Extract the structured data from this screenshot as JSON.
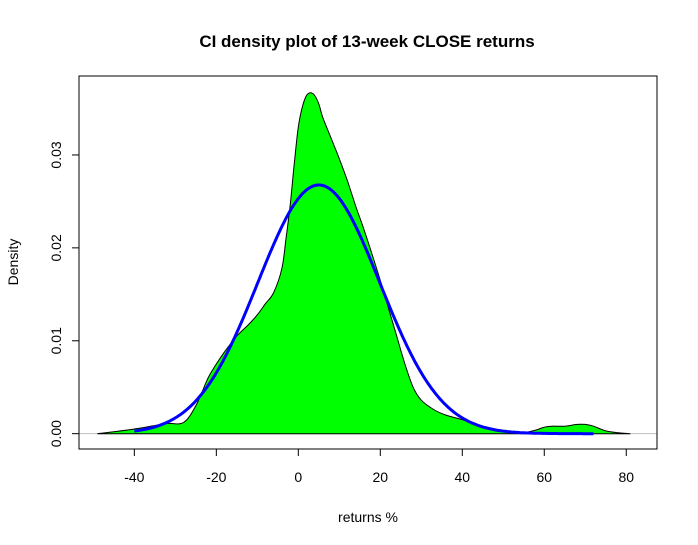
{
  "chart_data": {
    "type": "area",
    "title": "CI density plot of 13-week CLOSE returns",
    "xlabel": "returns %",
    "ylabel": "Density",
    "xlim": [
      -53.5,
      87.5
    ],
    "ylim": [
      -0.00165,
      0.0385
    ],
    "x_ticks": [
      -40,
      -20,
      0,
      20,
      40,
      60,
      80
    ],
    "x_tick_labels": [
      "-40",
      "-20",
      "0",
      "20",
      "40",
      "60",
      "80"
    ],
    "y_ticks": [
      0.0,
      0.01,
      0.02,
      0.03
    ],
    "y_tick_labels": [
      "0.00",
      "0.01",
      "0.02",
      "0.03"
    ],
    "baseline_y": 0,
    "grid": false,
    "legend": "none",
    "series": [
      {
        "kind": "density",
        "color": "#00ff00",
        "outline": "#000000",
        "x": [
          -49,
          -45,
          -40,
          -36,
          -32,
          -28,
          -25,
          -22,
          -20,
          -18,
          -15,
          -12,
          -10,
          -8,
          -6,
          -4,
          -3,
          -2,
          -1,
          0,
          1,
          2,
          3,
          4,
          5,
          6,
          8,
          10,
          12,
          14,
          16,
          18,
          20,
          22,
          24,
          26,
          28,
          30,
          33,
          36,
          40,
          44,
          48,
          52,
          55,
          58,
          60,
          62,
          65,
          68,
          70,
          72,
          75,
          78,
          81
        ],
        "y": [
          0,
          0.0002,
          0.0005,
          0.0008,
          0.0011,
          0.0012,
          0.003,
          0.006,
          0.0075,
          0.0088,
          0.0105,
          0.0118,
          0.0128,
          0.014,
          0.0152,
          0.0178,
          0.021,
          0.0245,
          0.029,
          0.033,
          0.0352,
          0.0364,
          0.0367,
          0.0364,
          0.0355,
          0.034,
          0.0318,
          0.0296,
          0.0272,
          0.0245,
          0.022,
          0.0193,
          0.0165,
          0.0135,
          0.0105,
          0.0075,
          0.005,
          0.0036,
          0.0026,
          0.002,
          0.0015,
          0.0008,
          0.0003,
          0.0001,
          0.0001,
          0.0004,
          0.0007,
          0.0008,
          0.0008,
          0.001,
          0.001,
          0.0008,
          0.0003,
          0.0001,
          0
        ]
      },
      {
        "kind": "normal-curve",
        "color": "#0000ff",
        "mean": 5,
        "sd": 14.9,
        "x_range": [
          -40,
          72
        ]
      }
    ]
  }
}
